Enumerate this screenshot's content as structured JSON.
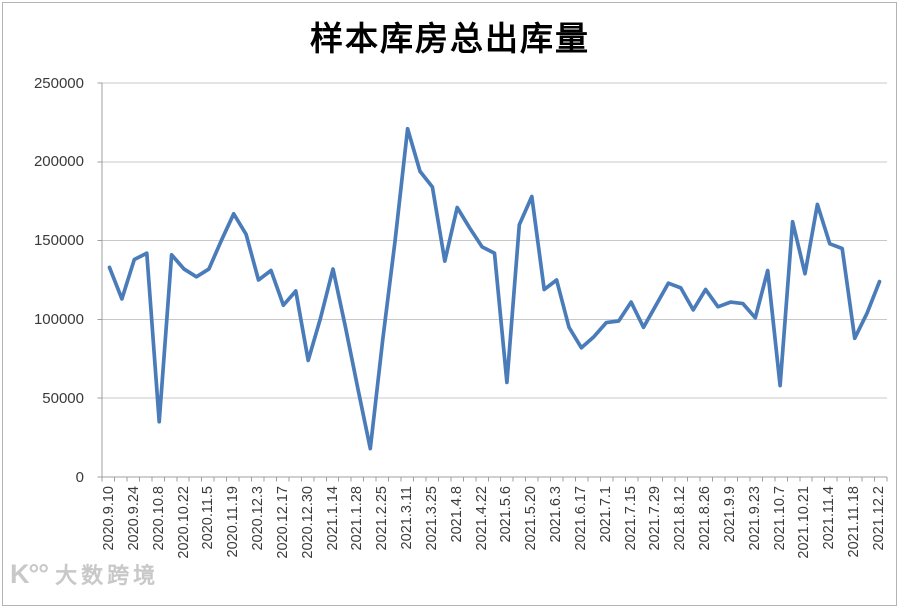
{
  "watermark": {
    "logo": "K°°",
    "text": "大数跨境"
  },
  "chart_data": {
    "type": "line",
    "title": "样本库房总出库量",
    "xlabel": "",
    "ylabel": "",
    "ylim": [
      0,
      250000
    ],
    "y_ticks": [
      0,
      50000,
      100000,
      150000,
      200000,
      250000
    ],
    "grid": "horizontal-major",
    "legend": "none",
    "line_color": "#4a7cba",
    "gridline_color": "#c8c8c8",
    "axis_color": "#9f9f9f",
    "label_interval": 2,
    "x_tick_labels": [
      "2020.9.10",
      "2020.9.24",
      "2020.10.8",
      "2020.10.22",
      "2020.11.5",
      "2020.11.19",
      "2020.12.3",
      "2020.12.17",
      "2020.12.30",
      "2021.1.14",
      "2021.1.28",
      "2021.2.25",
      "2021.3.11",
      "2021.3.25",
      "2021.4.8",
      "2021.4.22",
      "2021.5.6",
      "2021.5.20",
      "2021.6.3",
      "2021.6.17",
      "2021.7.1",
      "2021.7.15",
      "2021.7.29",
      "2021.8.12",
      "2021.8.26",
      "2021.9.9",
      "2021.9.23",
      "2021.10.7",
      "2021.10.21",
      "2021.11.4",
      "2021.11.18",
      "2021.12.2"
    ],
    "values": [
      133000,
      113000,
      138000,
      142000,
      35000,
      141000,
      132000,
      127000,
      132000,
      150000,
      167000,
      154000,
      125000,
      131000,
      109000,
      118000,
      74000,
      101000,
      132000,
      95000,
      56000,
      18000,
      87000,
      150000,
      221000,
      194000,
      184000,
      137000,
      171000,
      158000,
      146000,
      142000,
      60000,
      160000,
      178000,
      119000,
      125000,
      95000,
      82000,
      89000,
      98000,
      99000,
      111000,
      95000,
      109000,
      123000,
      120000,
      106000,
      119000,
      108000,
      111000,
      110000,
      101000,
      131000,
      58000,
      162000,
      129000,
      173000,
      148000,
      145000,
      88000,
      104000,
      124000
    ]
  }
}
